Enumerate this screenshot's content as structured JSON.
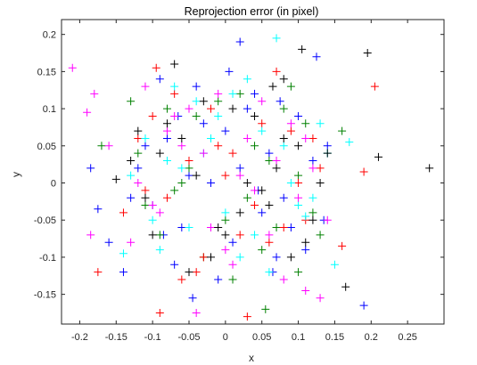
{
  "chart_data": {
    "type": "scatter",
    "title": "Reprojection error (in pixel)",
    "xlabel": "x",
    "ylabel": "y",
    "xlim": [
      -0.225,
      0.3
    ],
    "ylim": [
      -0.19,
      0.22
    ],
    "xticks": [
      -0.2,
      -0.15,
      -0.1,
      -0.05,
      0,
      0.05,
      0.1,
      0.15,
      0.2,
      0.25
    ],
    "xtick_labels": [
      "-0.2",
      "-0.15",
      "-0.1",
      "-0.05",
      "0",
      "0.05",
      "0.1",
      "0.15",
      "0.2",
      "0.25"
    ],
    "yticks": [
      -0.15,
      -0.1,
      -0.05,
      0,
      0.05,
      0.1,
      0.15,
      0.2
    ],
    "ytick_labels": [
      "-0.15",
      "-0.1",
      "-0.05",
      "0",
      "0.05",
      "0.1",
      "0.15",
      "0.2"
    ],
    "grid": false,
    "legend": false,
    "marker": "+",
    "series_colors": [
      "#0000ff",
      "#008000",
      "#ff0000",
      "#00ffff",
      "#ff00ff",
      "#000000"
    ],
    "series": [
      {
        "color": "#0000ff",
        "x": [
          0.125,
          -0.185,
          -0.16,
          -0.175,
          -0.09,
          0.135,
          -0.045,
          0.19,
          -0.14,
          0.02,
          -0.08,
          0.07,
          -0.12,
          0.04,
          -0.06,
          0.1,
          -0.02,
          0.06,
          -0.1,
          0.01,
          -0.03,
          0.08,
          -0.11,
          0.12,
          -0.07,
          0.03,
          0.05,
          -0.05,
          0.0,
          0.09,
          -0.13,
          0.11,
          -0.04,
          0.14,
          -0.01,
          0.02,
          0.075,
          -0.085,
          0.045,
          -0.065,
          0.005,
          0.065
        ],
        "y": [
          0.17,
          0.02,
          -0.08,
          -0.035,
          0.14,
          -0.05,
          -0.155,
          -0.165,
          -0.12,
          0.19,
          0.06,
          -0.1,
          0.02,
          0.12,
          -0.06,
          0.09,
          0.0,
          0.04,
          -0.03,
          -0.08,
          0.08,
          -0.02,
          0.05,
          0.03,
          -0.11,
          0.1,
          -0.04,
          0.01,
          0.07,
          -0.06,
          -0.02,
          -0.09,
          0.13,
          0.05,
          -0.13,
          0.02,
          0.11,
          -0.07,
          -0.01,
          0.09,
          0.15,
          -0.12
        ]
      },
      {
        "color": "#008000",
        "x": [
          0.1,
          0.055,
          -0.17,
          -0.13,
          0.16,
          -0.08,
          0.09,
          -0.03,
          0.13,
          -0.11,
          0.04,
          0.01,
          -0.05,
          0.07,
          -0.09,
          0.11,
          -0.02,
          0.03,
          -0.06,
          0.08,
          0.0,
          -0.04,
          0.06,
          -0.12,
          0.12,
          0.02,
          -0.07,
          0.05,
          -0.01,
          0.1
        ],
        "y": [
          -0.12,
          -0.17,
          0.05,
          0.11,
          0.07,
          0.1,
          0.13,
          -0.1,
          -0.07,
          -0.03,
          0.05,
          -0.13,
          0.02,
          -0.06,
          -0.07,
          0.08,
          0.06,
          -0.02,
          0.0,
          0.1,
          -0.05,
          0.09,
          0.03,
          0.04,
          -0.04,
          0.12,
          -0.01,
          -0.09,
          0.11,
          0.01
        ]
      },
      {
        "color": "#ff0000",
        "x": [
          -0.175,
          -0.09,
          0.205,
          0.19,
          0.16,
          -0.095,
          -0.06,
          0.03,
          -0.12,
          0.07,
          -0.02,
          0.11,
          -0.05,
          0.02,
          -0.14,
          0.09,
          0.0,
          -0.08,
          0.05,
          -0.03,
          0.13,
          -0.1,
          0.04,
          -0.01,
          0.08,
          -0.07,
          0.06,
          0.01,
          -0.04,
          0.1,
          -0.11,
          0.12
        ],
        "y": [
          -0.12,
          -0.175,
          0.13,
          0.015,
          -0.085,
          0.155,
          -0.13,
          -0.18,
          0.06,
          0.15,
          0.1,
          -0.05,
          0.03,
          -0.07,
          -0.04,
          0.07,
          0.01,
          -0.02,
          0.08,
          -0.1,
          0.02,
          0.09,
          -0.03,
          0.05,
          -0.06,
          0.12,
          -0.08,
          0.04,
          -0.12,
          0.0,
          -0.01,
          0.06
        ]
      },
      {
        "color": "#00ffff",
        "x": [
          0.07,
          0.03,
          0.17,
          -0.14,
          0.15,
          0.11,
          -0.11,
          0.06,
          -0.07,
          0.13,
          -0.03,
          0.09,
          -0.09,
          0.01,
          -0.05,
          0.05,
          -0.13,
          0.1,
          -0.01,
          0.02,
          -0.06,
          0.08,
          0.04,
          -0.02,
          0.12,
          -0.08,
          0.0,
          -0.04,
          0.14,
          -0.1
        ],
        "y": [
          0.195,
          0.14,
          0.055,
          -0.095,
          -0.11,
          -0.045,
          0.06,
          -0.12,
          0.13,
          0.08,
          0.04,
          0.0,
          -0.09,
          0.12,
          -0.06,
          0.07,
          0.01,
          -0.03,
          0.09,
          -0.1,
          0.02,
          0.05,
          -0.07,
          0.06,
          -0.02,
          0.03,
          -0.04,
          0.11,
          0.04,
          -0.05
        ]
      },
      {
        "color": "#ff00ff",
        "x": [
          -0.21,
          -0.19,
          -0.185,
          -0.18,
          -0.16,
          0.11,
          0.13,
          -0.11,
          -0.04,
          0.08,
          -0.13,
          0.12,
          -0.07,
          0.05,
          -0.02,
          0.1,
          -0.09,
          0.03,
          -0.05,
          0.07,
          0.0,
          -0.03,
          0.09,
          -0.12,
          0.06,
          -0.08,
          0.02,
          0.14,
          -0.1,
          0.04,
          -0.06,
          0.01,
          -0.01,
          0.11
        ],
        "y": [
          0.155,
          0.095,
          -0.07,
          0.12,
          0.05,
          -0.145,
          -0.155,
          0.13,
          -0.175,
          -0.13,
          -0.08,
          0.02,
          0.09,
          0.11,
          -0.06,
          -0.02,
          -0.04,
          0.06,
          0.1,
          0.03,
          -0.09,
          0.04,
          0.08,
          0.0,
          -0.07,
          0.07,
          0.01,
          -0.05,
          -0.03,
          -0.01,
          0.05,
          -0.11,
          0.12,
          0.06
        ]
      },
      {
        "color": "#000000",
        "x": [
          0.28,
          0.21,
          0.165,
          0.195,
          0.105,
          0.08,
          0.065,
          -0.07,
          -0.15,
          0.14,
          0.09,
          -0.1,
          0.04,
          -0.06,
          0.12,
          -0.02,
          0.07,
          -0.12,
          0.02,
          -0.04,
          0.1,
          0.0,
          -0.08,
          0.05,
          -0.13,
          0.11,
          -0.03,
          0.06,
          -0.09,
          0.03,
          -0.01,
          0.08,
          -0.05,
          0.01,
          0.13,
          -0.11
        ],
        "y": [
          0.02,
          0.035,
          -0.14,
          0.175,
          0.18,
          0.14,
          0.13,
          0.16,
          0.005,
          0.04,
          -0.1,
          -0.07,
          0.09,
          0.06,
          -0.05,
          -0.1,
          0.02,
          0.07,
          -0.04,
          0.01,
          0.05,
          -0.07,
          0.08,
          -0.01,
          0.03,
          -0.08,
          0.11,
          -0.03,
          0.04,
          0.0,
          -0.06,
          0.06,
          -0.12,
          0.1,
          0.0,
          -0.02
        ]
      }
    ]
  }
}
